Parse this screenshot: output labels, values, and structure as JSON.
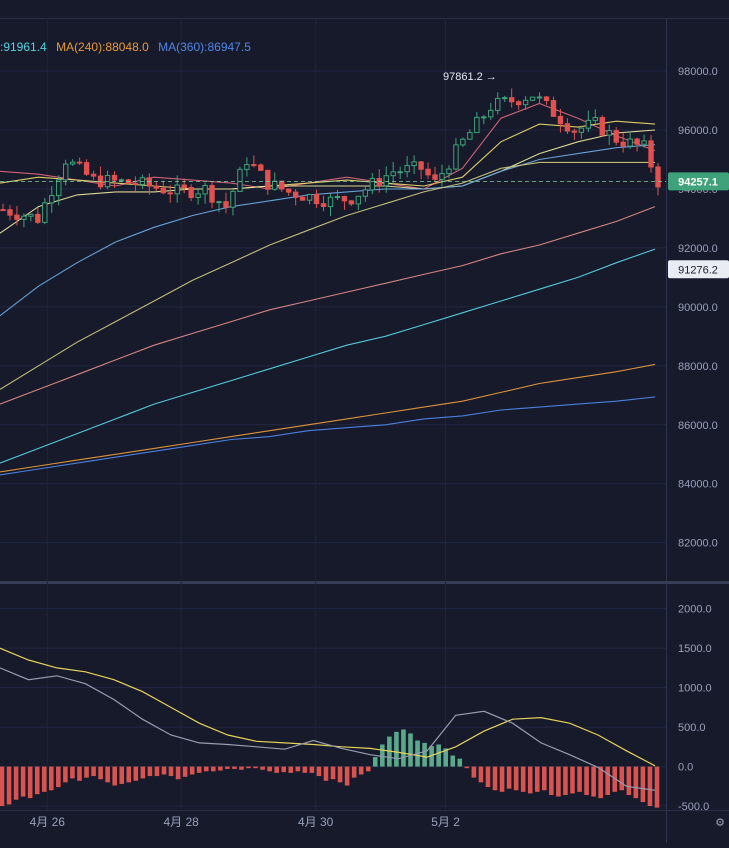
{
  "chart_data": [
    {
      "type": "candlestick",
      "legend": [
        {
          "text": ":91961.4",
          "color": "#56d4e2"
        },
        {
          "text": "MA(240):88048.0",
          "color": "#e79a3c"
        },
        {
          "text": "MA(360):86947.5",
          "color": "#4f86e8"
        }
      ],
      "y_ticks": [
        "98000.0",
        "96000.0",
        "94000.0",
        "92000.0",
        "90000.0",
        "88000.0",
        "86000.0",
        "84000.0",
        "82000.0"
      ],
      "y_tick_values": [
        98000,
        96000,
        94000,
        92000,
        90000,
        88000,
        86000,
        84000,
        82000
      ],
      "ylim": [
        80700,
        99800
      ],
      "last_price_label": "94257.1",
      "last_price": 94257.1,
      "last_price_color": "#3fa27a",
      "ma_value_label": "91276.2",
      "ma_value": 91276.2,
      "high_annotation": "97861.2 →",
      "high_value": 97861.2,
      "high_x": 0.758,
      "candle_count": 95,
      "ohlc_path": [
        [
          0,
          93300
        ],
        [
          5,
          93000
        ],
        [
          9,
          95000
        ],
        [
          13,
          94300
        ],
        [
          19,
          94200
        ],
        [
          25,
          93900
        ],
        [
          29,
          94000
        ],
        [
          32,
          93400
        ],
        [
          35,
          95000
        ],
        [
          38,
          94200
        ],
        [
          41,
          93900
        ],
        [
          47,
          93600
        ],
        [
          50,
          93700
        ],
        [
          52,
          94000
        ],
        [
          56,
          94600
        ],
        [
          60,
          94700
        ],
        [
          62,
          94200
        ],
        [
          66,
          95600
        ],
        [
          70,
          96800
        ],
        [
          73,
          97000
        ],
        [
          76,
          97200
        ],
        [
          79,
          96600
        ],
        [
          82,
          96000
        ],
        [
          85,
          96200
        ],
        [
          88,
          95700
        ],
        [
          92,
          95400
        ],
        [
          94,
          94257
        ]
      ],
      "series": [
        {
          "name": "",
          "color": "#d9667a",
          "values": [
            94600,
            94500,
            94300,
            94100,
            94400,
            94300,
            94200,
            94000,
            94200,
            94400,
            94200,
            94000,
            94700,
            96400,
            96900,
            96400,
            95800,
            95300
          ]
        },
        {
          "name": "",
          "color": "#e8d56a",
          "values": [
            94200,
            94400,
            94300,
            94200,
            94100,
            94000,
            94000,
            94100,
            94200,
            94300,
            94200,
            94100,
            94400,
            95600,
            96200,
            96100,
            96300,
            96200
          ]
        },
        {
          "name": "",
          "color": "#e8e39a",
          "values": [
            92500,
            93400,
            93800,
            93900,
            93900,
            94000,
            94000,
            94100,
            94100,
            94100,
            94100,
            94000,
            94100,
            94600,
            95200,
            95600,
            95900,
            96000
          ]
        },
        {
          "name": "",
          "color": "#6ba8e0",
          "values": [
            89700,
            90700,
            91500,
            92200,
            92700,
            93100,
            93400,
            93600,
            93800,
            93900,
            94000,
            94000,
            94100,
            94600,
            95000,
            95200,
            95400,
            95500
          ]
        },
        {
          "name": "",
          "color": "#c9c77a",
          "values": [
            87200,
            88000,
            88800,
            89500,
            90200,
            90900,
            91500,
            92100,
            92600,
            93100,
            93500,
            93900,
            94200,
            94700,
            94900,
            94900,
            94900,
            94900
          ]
        },
        {
          "name": "",
          "color": "#e08a86",
          "values": [
            86700,
            87200,
            87700,
            88200,
            88700,
            89100,
            89500,
            89900,
            90200,
            90500,
            90800,
            91100,
            91400,
            91800,
            92100,
            92500,
            92900,
            93400
          ]
        },
        {
          "name": "",
          "color": "#56d4e2",
          "values": [
            84700,
            85200,
            85700,
            86200,
            86700,
            87100,
            87500,
            87900,
            88300,
            88700,
            89000,
            89400,
            89800,
            90200,
            90600,
            91000,
            91500,
            91960
          ]
        },
        {
          "name": "",
          "color": "#e79a3c",
          "values": [
            84400,
            84600,
            84800,
            85000,
            85200,
            85400,
            85600,
            85800,
            86000,
            86200,
            86400,
            86600,
            86800,
            87100,
            87400,
            87600,
            87800,
            88048
          ]
        },
        {
          "name": "",
          "color": "#4f86e8",
          "values": [
            84300,
            84500,
            84700,
            84900,
            85100,
            85300,
            85500,
            85600,
            85800,
            85900,
            86000,
            86200,
            86300,
            86500,
            86600,
            86700,
            86800,
            86947
          ]
        }
      ]
    },
    {
      "type": "bar+line",
      "y_ticks": [
        "2000.0",
        "1500.0",
        "1000.0",
        "500.0",
        "0.0",
        "-500.0"
      ],
      "y_tick_values": [
        2000,
        1500,
        1000,
        500,
        0,
        -500
      ],
      "ylim": [
        -550,
        2300
      ],
      "x_ticks": [
        {
          "label": "4月 26",
          "pos": 0.071
        },
        {
          "label": "4月 28",
          "pos": 0.272
        },
        {
          "label": "4月 30",
          "pos": 0.474
        },
        {
          "label": "5月 2",
          "pos": 0.669
        }
      ],
      "histogram": [
        -500,
        -480,
        -420,
        -380,
        -400,
        -350,
        -320,
        -300,
        -260,
        -200,
        -150,
        -180,
        -140,
        -120,
        -160,
        -200,
        -240,
        -220,
        -200,
        -180,
        -150,
        -120,
        -120,
        -100,
        -120,
        -160,
        -130,
        -100,
        -80,
        -60,
        -60,
        -50,
        -30,
        -30,
        -40,
        -20,
        -20,
        -40,
        -60,
        -80,
        -70,
        -80,
        -60,
        -80,
        -80,
        -120,
        -180,
        -160,
        -200,
        -240,
        -140,
        -100,
        -60,
        120,
        280,
        380,
        440,
        470,
        420,
        330,
        300,
        260,
        280,
        230,
        140,
        100,
        -20,
        -140,
        -200,
        -260,
        -300,
        -320,
        -280,
        -300,
        -320,
        -340,
        -320,
        -300,
        -360,
        -380,
        -360,
        -340,
        -320,
        -360,
        -380,
        -400,
        -360,
        -320,
        -300,
        -360,
        -400,
        -450,
        -500,
        -520
      ],
      "lines": [
        {
          "name": "",
          "color": "#e5d25a",
          "values": [
            1500,
            1350,
            1250,
            1200,
            1100,
            950,
            750,
            550,
            400,
            320,
            300,
            280,
            250,
            230,
            180,
            120,
            250,
            450,
            600,
            620,
            550,
            400,
            200,
            10
          ]
        },
        {
          "name": "",
          "color": "#9a9ab0",
          "values": [
            1250,
            1100,
            1150,
            1050,
            850,
            600,
            400,
            300,
            280,
            250,
            220,
            330,
            230,
            150,
            100,
            200,
            650,
            700,
            550,
            300,
            150,
            -10,
            -250,
            -300
          ]
        }
      ]
    }
  ]
}
